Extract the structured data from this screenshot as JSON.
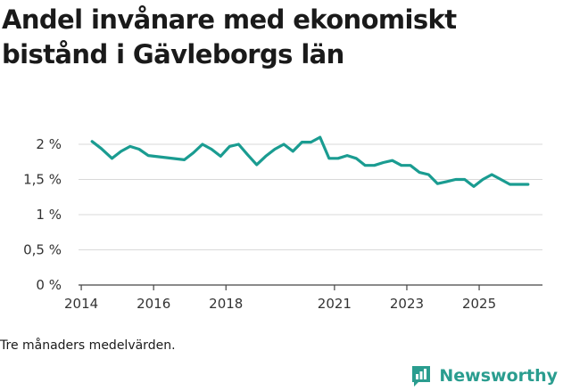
{
  "title": "Andel invånare med ekonomiskt bistånd i Gävleborgs län",
  "footnote": "Tre månaders medelvärden.",
  "brand": {
    "name": "Newsworthy",
    "icon": "newsworthy-logo-icon",
    "color": "#2a9d8f"
  },
  "chart_data": {
    "type": "line",
    "title": "Andel invånare med ekonomiskt bistånd i Gävleborgs län",
    "xlabel": "",
    "ylabel": "",
    "xlim": [
      2013.85,
      2026.75
    ],
    "ylim": [
      0,
      2.1
    ],
    "grid": true,
    "line_color": "#1a9c91",
    "x_ticks": [
      {
        "value": 2014,
        "label": "2014"
      },
      {
        "value": 2016,
        "label": "2016"
      },
      {
        "value": 2018,
        "label": "2018"
      },
      {
        "value": 2021,
        "label": "2021"
      },
      {
        "value": 2023,
        "label": "2023"
      },
      {
        "value": 2025,
        "label": "2025"
      }
    ],
    "y_ticks": [
      {
        "value": 0,
        "label": "0 %"
      },
      {
        "value": 0.5,
        "label": "0,5 %"
      },
      {
        "value": 1,
        "label": "1 %"
      },
      {
        "value": 1.5,
        "label": "1,5 %"
      },
      {
        "value": 2,
        "label": "2 %"
      }
    ],
    "series": [
      {
        "name": "",
        "x": [
          2014.3,
          2014.55,
          2014.85,
          2015.1,
          2015.35,
          2015.6,
          2015.85,
          2016.85,
          2017.1,
          2017.35,
          2017.6,
          2017.85,
          2018.1,
          2018.35,
          2018.6,
          2018.85,
          2019.1,
          2019.35,
          2019.6,
          2019.85,
          2020.1,
          2020.35,
          2020.6,
          2020.85,
          2021.1,
          2021.35,
          2021.6,
          2021.85,
          2022.1,
          2022.35,
          2022.6,
          2022.85,
          2023.1,
          2023.35,
          2023.6,
          2023.85,
          2024.1,
          2024.35,
          2024.6,
          2024.85,
          2025.1,
          2025.35,
          2025.6,
          2025.85,
          2026.1,
          2026.35
        ],
        "y": [
          2.04,
          1.94,
          1.8,
          1.9,
          1.97,
          1.93,
          1.84,
          1.78,
          1.88,
          2.0,
          1.93,
          1.83,
          1.97,
          2.0,
          1.85,
          1.71,
          1.83,
          1.93,
          2.0,
          1.9,
          2.03,
          2.03,
          2.1,
          1.8,
          1.8,
          1.84,
          1.8,
          1.7,
          1.7,
          1.74,
          1.77,
          1.7,
          1.7,
          1.6,
          1.57,
          1.44,
          1.47,
          1.5,
          1.5,
          1.4,
          1.5,
          1.57,
          1.5,
          1.43,
          1.43,
          1.43
        ]
      }
    ]
  }
}
